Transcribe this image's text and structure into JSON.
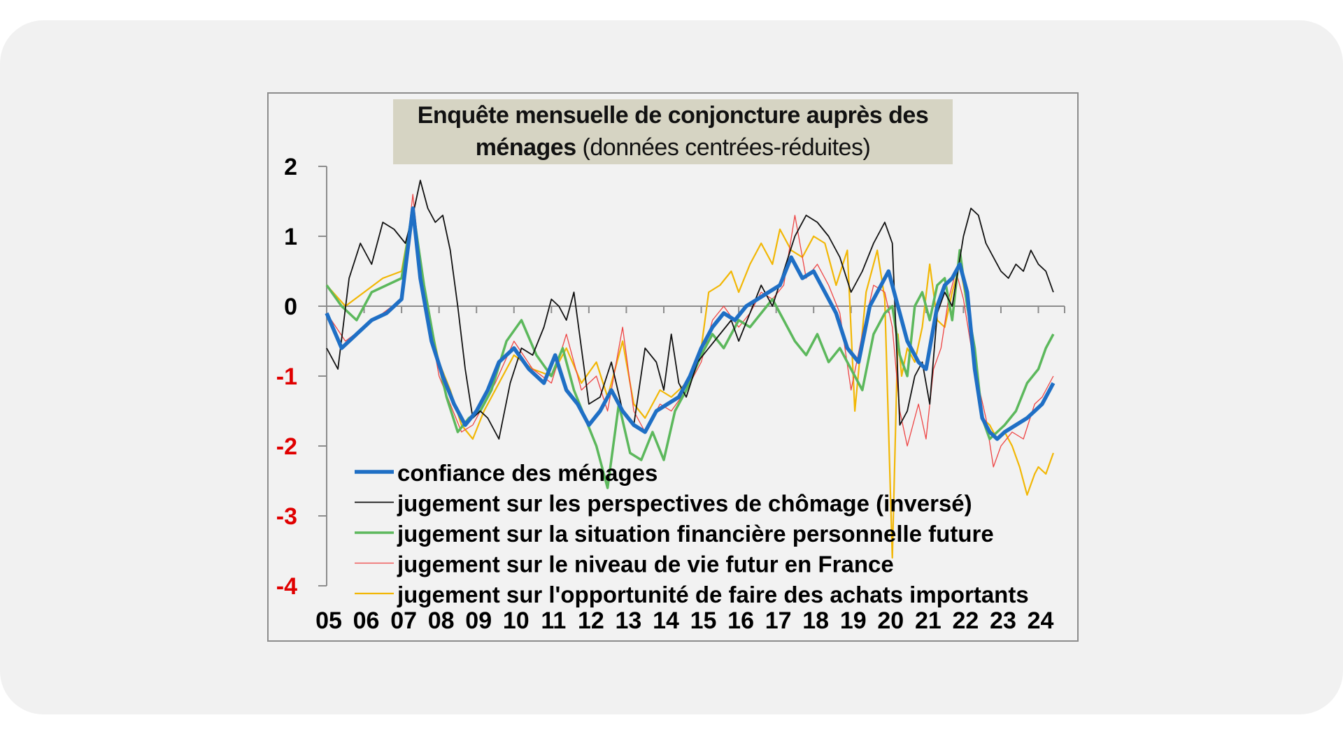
{
  "chart_data": {
    "type": "line",
    "title_bold_1": "Enquête mensuelle de conjoncture auprès des",
    "title_bold_2": "ménages",
    "title_normal_2": " (données centrées-réduites)",
    "ylim": [
      -4,
      2
    ],
    "yticks": [
      {
        "label": "2",
        "value": 2,
        "color": "#000000"
      },
      {
        "label": "1",
        "value": 1,
        "color": "#000000"
      },
      {
        "label": "0",
        "value": 0,
        "color": "#000000"
      },
      {
        "label": "-1",
        "value": -1,
        "color": "#e00000"
      },
      {
        "label": "-2",
        "value": -2,
        "color": "#e00000"
      },
      {
        "label": "-3",
        "value": -3,
        "color": "#e00000"
      },
      {
        "label": "-4",
        "value": -4,
        "color": "#e00000"
      }
    ],
    "xlim": [
      2005,
      2024.7
    ],
    "xticks": [
      {
        "label": "05",
        "value": 2005.0
      },
      {
        "label": "06",
        "value": 2006.0
      },
      {
        "label": "07",
        "value": 2007.0
      },
      {
        "label": "08",
        "value": 2008.0
      },
      {
        "label": "09",
        "value": 2009.0
      },
      {
        "label": "10",
        "value": 2010.0
      },
      {
        "label": "11",
        "value": 2011.0
      },
      {
        "label": "12",
        "value": 2012.0
      },
      {
        "label": "13",
        "value": 2013.0
      },
      {
        "label": "14",
        "value": 2014.0
      },
      {
        "label": "15",
        "value": 2015.0
      },
      {
        "label": "16",
        "value": 2016.0
      },
      {
        "label": "17",
        "value": 2017.0
      },
      {
        "label": "18",
        "value": 2018.0
      },
      {
        "label": "19",
        "value": 2019.0
      },
      {
        "label": "20",
        "value": 2020.0
      },
      {
        "label": "21",
        "value": 2021.0
      },
      {
        "label": "22",
        "value": 2022.0
      },
      {
        "label": "23",
        "value": 2023.0
      },
      {
        "label": "24",
        "value": 2024.0
      }
    ],
    "series": [
      {
        "name": "jugement sur l'opportunité de faire des achats importants",
        "color": "#f2b705",
        "width": 2.2,
        "x": [
          2005.0,
          2005.5,
          2006.0,
          2006.5,
          2007.0,
          2007.3,
          2007.5,
          2007.8,
          2008.0,
          2008.3,
          2008.6,
          2008.9,
          2009.2,
          2009.5,
          2010.0,
          2010.5,
          2011.0,
          2011.4,
          2011.8,
          2012.2,
          2012.5,
          2012.9,
          2013.2,
          2013.5,
          2013.9,
          2014.2,
          2014.6,
          2015.0,
          2015.2,
          2015.5,
          2015.8,
          2016.0,
          2016.3,
          2016.6,
          2016.9,
          2017.1,
          2017.4,
          2017.7,
          2018.0,
          2018.3,
          2018.6,
          2018.9,
          2019.1,
          2019.4,
          2019.7,
          2019.9,
          2020.1,
          2020.25,
          2020.35,
          2020.5,
          2020.7,
          2020.9,
          2021.1,
          2021.3,
          2021.5,
          2021.7,
          2021.9,
          2022.1,
          2022.3,
          2022.5,
          2022.7,
          2022.9,
          2023.1,
          2023.3,
          2023.5,
          2023.7,
          2023.9,
          2024.0,
          2024.2,
          2024.4
        ],
        "y": [
          0.3,
          0.0,
          0.2,
          0.4,
          0.5,
          1.4,
          0.6,
          -0.3,
          -0.8,
          -1.2,
          -1.7,
          -1.9,
          -1.5,
          -1.2,
          -0.7,
          -0.9,
          -1.0,
          -0.6,
          -1.1,
          -0.8,
          -1.3,
          -0.5,
          -1.4,
          -1.6,
          -1.2,
          -1.3,
          -1.1,
          -0.6,
          0.2,
          0.3,
          0.5,
          0.2,
          0.6,
          0.9,
          0.6,
          1.1,
          0.8,
          0.7,
          1.0,
          0.9,
          0.3,
          0.8,
          -1.5,
          0.2,
          0.8,
          0.1,
          -3.6,
          -0.4,
          -1.0,
          -0.6,
          -0.8,
          -0.3,
          0.6,
          -0.2,
          -0.3,
          0.2,
          0.6,
          0.0,
          -0.9,
          -1.6,
          -1.7,
          -1.9,
          -1.8,
          -2.0,
          -2.3,
          -2.7,
          -2.4,
          -2.3,
          -2.4,
          -2.1
        ]
      },
      {
        "name": "jugement sur le niveau de vie futur en France",
        "color": "#ee4444",
        "width": 1.3,
        "x": [
          2005.0,
          2005.5,
          2006.0,
          2006.5,
          2007.0,
          2007.3,
          2007.5,
          2007.8,
          2008.0,
          2008.3,
          2008.6,
          2008.9,
          2009.2,
          2009.5,
          2010.0,
          2010.5,
          2011.0,
          2011.4,
          2011.8,
          2012.2,
          2012.5,
          2012.9,
          2013.2,
          2013.5,
          2013.9,
          2014.2,
          2014.6,
          2015.0,
          2015.3,
          2015.6,
          2016.0,
          2016.3,
          2016.6,
          2016.9,
          2017.2,
          2017.5,
          2017.8,
          2018.1,
          2018.4,
          2018.7,
          2019.0,
          2019.3,
          2019.6,
          2019.9,
          2020.1,
          2020.3,
          2020.5,
          2020.8,
          2021.0,
          2021.2,
          2021.4,
          2021.6,
          2021.8,
          2022.0,
          2022.3,
          2022.6,
          2022.8,
          2023.0,
          2023.3,
          2023.6,
          2023.9,
          2024.1,
          2024.4
        ],
        "y": [
          -0.1,
          -0.5,
          -0.3,
          -0.1,
          0.1,
          1.6,
          0.6,
          -0.4,
          -1.0,
          -1.4,
          -1.8,
          -1.7,
          -1.4,
          -1.1,
          -0.5,
          -0.9,
          -1.1,
          -0.4,
          -1.2,
          -1.0,
          -1.5,
          -0.3,
          -1.5,
          -1.8,
          -1.4,
          -1.5,
          -1.2,
          -0.8,
          -0.2,
          0.0,
          -0.3,
          -0.1,
          0.2,
          0.1,
          0.3,
          1.3,
          0.4,
          0.6,
          0.3,
          -0.1,
          -1.2,
          -0.4,
          0.3,
          0.2,
          -0.3,
          -1.5,
          -2.0,
          -1.4,
          -1.9,
          -0.9,
          -0.6,
          0.1,
          0.5,
          0.1,
          -0.9,
          -1.6,
          -2.3,
          -2.0,
          -1.8,
          -1.9,
          -1.4,
          -1.3,
          -1.0
        ]
      },
      {
        "name": "jugement sur la situation financière personnelle future",
        "color": "#5cb85c",
        "width": 3.5,
        "x": [
          2005.0,
          2005.4,
          2005.8,
          2006.2,
          2006.6,
          2007.0,
          2007.3,
          2007.6,
          2007.9,
          2008.2,
          2008.5,
          2008.8,
          2009.1,
          2009.4,
          2009.8,
          2010.2,
          2010.6,
          2011.0,
          2011.3,
          2011.6,
          2011.9,
          2012.2,
          2012.5,
          2012.8,
          2013.1,
          2013.4,
          2013.7,
          2014.0,
          2014.3,
          2014.6,
          2015.0,
          2015.3,
          2015.6,
          2016.0,
          2016.3,
          2016.6,
          2016.9,
          2017.2,
          2017.5,
          2017.8,
          2018.1,
          2018.4,
          2018.7,
          2019.0,
          2019.3,
          2019.6,
          2019.9,
          2020.1,
          2020.3,
          2020.5,
          2020.7,
          2020.9,
          2021.1,
          2021.3,
          2021.5,
          2021.7,
          2021.9,
          2022.1,
          2022.3,
          2022.5,
          2022.7,
          2022.9,
          2023.1,
          2023.4,
          2023.7,
          2024.0,
          2024.2,
          2024.4
        ],
        "y": [
          0.3,
          0.0,
          -0.2,
          0.2,
          0.3,
          0.4,
          1.4,
          0.3,
          -0.6,
          -1.3,
          -1.8,
          -1.6,
          -1.5,
          -1.2,
          -0.5,
          -0.2,
          -0.7,
          -1.0,
          -0.6,
          -1.2,
          -1.6,
          -2.0,
          -2.6,
          -1.4,
          -2.1,
          -2.2,
          -1.8,
          -2.2,
          -1.5,
          -1.2,
          -0.7,
          -0.4,
          -0.6,
          -0.2,
          -0.3,
          -0.1,
          0.1,
          -0.2,
          -0.5,
          -0.7,
          -0.4,
          -0.8,
          -0.6,
          -0.9,
          -1.2,
          -0.4,
          -0.1,
          0.0,
          -0.7,
          -1.0,
          0.0,
          0.2,
          -0.2,
          0.3,
          0.4,
          -0.2,
          0.8,
          0.0,
          -0.6,
          -1.6,
          -1.9,
          -1.8,
          -1.7,
          -1.5,
          -1.1,
          -0.9,
          -0.6,
          -0.4
        ]
      },
      {
        "name": "jugement sur les perspectives de chômage (inversé)",
        "color": "#111111",
        "width": 1.8,
        "x": [
          2005.0,
          2005.3,
          2005.6,
          2005.9,
          2006.2,
          2006.5,
          2006.8,
          2007.1,
          2007.3,
          2007.5,
          2007.7,
          2007.9,
          2008.1,
          2008.3,
          2008.5,
          2008.7,
          2008.9,
          2009.1,
          2009.3,
          2009.6,
          2009.9,
          2010.2,
          2010.5,
          2010.8,
          2011.0,
          2011.2,
          2011.4,
          2011.6,
          2011.8,
          2012.0,
          2012.3,
          2012.6,
          2012.9,
          2013.2,
          2013.5,
          2013.8,
          2014.0,
          2014.2,
          2014.4,
          2014.6,
          2014.9,
          2015.2,
          2015.5,
          2015.8,
          2016.0,
          2016.3,
          2016.6,
          2016.9,
          2017.2,
          2017.5,
          2017.8,
          2018.1,
          2018.4,
          2018.7,
          2019.0,
          2019.3,
          2019.6,
          2019.9,
          2020.1,
          2020.3,
          2020.5,
          2020.7,
          2020.9,
          2021.1,
          2021.3,
          2021.5,
          2021.7,
          2022.0,
          2022.2,
          2022.4,
          2022.6,
          2022.8,
          2023.0,
          2023.2,
          2023.4,
          2023.6,
          2023.8,
          2024.0,
          2024.2,
          2024.4
        ],
        "y": [
          -0.6,
          -0.9,
          0.4,
          0.9,
          0.6,
          1.2,
          1.1,
          0.9,
          1.3,
          1.8,
          1.4,
          1.2,
          1.3,
          0.8,
          0.0,
          -0.9,
          -1.6,
          -1.5,
          -1.6,
          -1.9,
          -1.1,
          -0.6,
          -0.7,
          -0.3,
          0.1,
          0.0,
          -0.2,
          0.2,
          -0.6,
          -1.4,
          -1.3,
          -0.8,
          -1.5,
          -1.7,
          -0.6,
          -0.8,
          -1.2,
          -0.4,
          -1.1,
          -1.3,
          -0.8,
          -0.6,
          -0.4,
          -0.2,
          -0.5,
          -0.1,
          0.3,
          0.0,
          0.5,
          1.0,
          1.3,
          1.2,
          1.0,
          0.7,
          0.2,
          0.5,
          0.9,
          1.2,
          0.9,
          -1.7,
          -1.5,
          -1.0,
          -0.8,
          -1.4,
          -0.1,
          0.2,
          0.0,
          1.0,
          1.4,
          1.3,
          0.9,
          0.7,
          0.5,
          0.4,
          0.6,
          0.5,
          0.8,
          0.6,
          0.5,
          0.2
        ]
      },
      {
        "name": "confiance des ménages",
        "color": "#1f6fc5",
        "width": 5.5,
        "x": [
          2005.0,
          2005.4,
          2005.8,
          2006.2,
          2006.6,
          2007.0,
          2007.3,
          2007.5,
          2007.8,
          2008.1,
          2008.4,
          2008.7,
          2009.0,
          2009.3,
          2009.6,
          2010.0,
          2010.4,
          2010.8,
          2011.1,
          2011.4,
          2011.7,
          2012.0,
          2012.3,
          2012.6,
          2012.9,
          2013.2,
          2013.5,
          2013.8,
          2014.1,
          2014.4,
          2014.7,
          2015.0,
          2015.3,
          2015.6,
          2015.9,
          2016.2,
          2016.5,
          2016.8,
          2017.1,
          2017.4,
          2017.7,
          2018.0,
          2018.3,
          2018.6,
          2018.9,
          2019.2,
          2019.5,
          2019.8,
          2020.0,
          2020.2,
          2020.5,
          2020.8,
          2021.0,
          2021.3,
          2021.5,
          2021.7,
          2021.9,
          2022.1,
          2022.3,
          2022.5,
          2022.7,
          2022.9,
          2023.1,
          2023.4,
          2023.7,
          2023.9,
          2024.1,
          2024.3,
          2024.4
        ],
        "y": [
          -0.1,
          -0.6,
          -0.4,
          -0.2,
          -0.1,
          0.1,
          1.4,
          0.4,
          -0.5,
          -1.0,
          -1.4,
          -1.7,
          -1.5,
          -1.2,
          -0.8,
          -0.6,
          -0.9,
          -1.1,
          -0.7,
          -1.2,
          -1.4,
          -1.7,
          -1.5,
          -1.2,
          -1.5,
          -1.7,
          -1.8,
          -1.5,
          -1.4,
          -1.3,
          -1.0,
          -0.6,
          -0.3,
          -0.1,
          -0.2,
          0.0,
          0.1,
          0.2,
          0.3,
          0.7,
          0.4,
          0.5,
          0.2,
          -0.1,
          -0.6,
          -0.8,
          0.0,
          0.3,
          0.5,
          0.1,
          -0.5,
          -0.8,
          -0.9,
          0.0,
          0.3,
          0.4,
          0.6,
          0.2,
          -0.9,
          -1.6,
          -1.8,
          -1.9,
          -1.8,
          -1.7,
          -1.6,
          -1.5,
          -1.4,
          -1.2,
          -1.1
        ]
      }
    ],
    "legend": [
      {
        "label": "confiance des ménages",
        "color": "#1f6fc5",
        "width": 5.5
      },
      {
        "label": "jugement sur les perspectives de chômage (inversé)",
        "color": "#111111",
        "width": 1.8
      },
      {
        "label": "jugement sur la situation financière personnelle future",
        "color": "#5cb85c",
        "width": 3.5
      },
      {
        "label": "jugement sur le niveau de vie futur en France",
        "color": "#ee4444",
        "width": 1.3
      },
      {
        "label": "jugement sur l'opportunité de faire des achats importants",
        "color": "#f2b705",
        "width": 2.2
      }
    ],
    "legend_position": "bottom-center",
    "grid": false
  }
}
